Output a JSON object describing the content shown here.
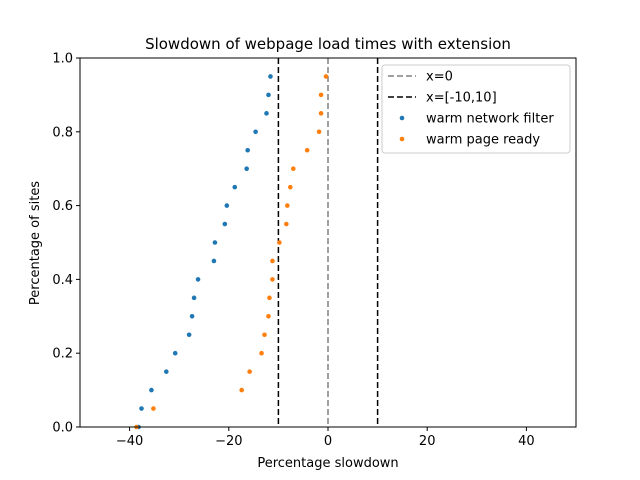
{
  "chart_data": {
    "type": "scatter",
    "title": "Slowdown of webpage load times with extension",
    "xlabel": "Percentage slowdown",
    "ylabel": "Percentage of sites",
    "xlim": [
      -50,
      50
    ],
    "ylim": [
      0,
      1.0
    ],
    "xticks": [
      -40,
      -20,
      0,
      20,
      40
    ],
    "yticks": [
      0.0,
      0.2,
      0.4,
      0.6,
      0.8,
      1.0
    ],
    "xtick_labels": [
      "−40",
      "−20",
      "0",
      "20",
      "40"
    ],
    "ytick_labels": [
      "0.0",
      "0.2",
      "0.4",
      "0.6",
      "0.8",
      "1.0"
    ],
    "legend_position": "top-right",
    "vlines": [
      {
        "label": "x=0",
        "x": [
          0
        ],
        "color": "#808080",
        "style": "dashed"
      },
      {
        "label": "x=[-10,10]",
        "x": [
          -10,
          10
        ],
        "color": "#000000",
        "style": "dashed"
      }
    ],
    "series": [
      {
        "name": "warm network filter",
        "color": "#1f77b4",
        "x": [
          -38.2,
          -37.6,
          -35.6,
          -32.6,
          -30.8,
          -28.0,
          -27.4,
          -27.0,
          -26.2,
          -23.0,
          -22.8,
          -20.8,
          -20.4,
          -18.8,
          -16.4,
          -16.2,
          -14.6,
          -12.4,
          -12.0,
          -11.6
        ],
        "y": [
          0.0,
          0.05,
          0.1,
          0.15,
          0.2,
          0.25,
          0.3,
          0.35,
          0.4,
          0.45,
          0.5,
          0.55,
          0.6,
          0.65,
          0.7,
          0.75,
          0.8,
          0.85,
          0.9,
          0.95
        ]
      },
      {
        "name": "warm page ready",
        "color": "#ff7f0e",
        "x": [
          -38.6,
          -35.2,
          -17.4,
          -15.8,
          -13.4,
          -12.8,
          -12.0,
          -11.8,
          -11.2,
          -11.2,
          -9.8,
          -8.4,
          -8.2,
          -7.6,
          -7.0,
          -4.2,
          -1.8,
          -1.4,
          -1.4,
          -0.4
        ],
        "y": [
          0.0,
          0.05,
          0.1,
          0.15,
          0.2,
          0.25,
          0.3,
          0.35,
          0.4,
          0.45,
          0.5,
          0.55,
          0.6,
          0.65,
          0.7,
          0.75,
          0.8,
          0.85,
          0.9,
          0.95
        ]
      }
    ]
  }
}
